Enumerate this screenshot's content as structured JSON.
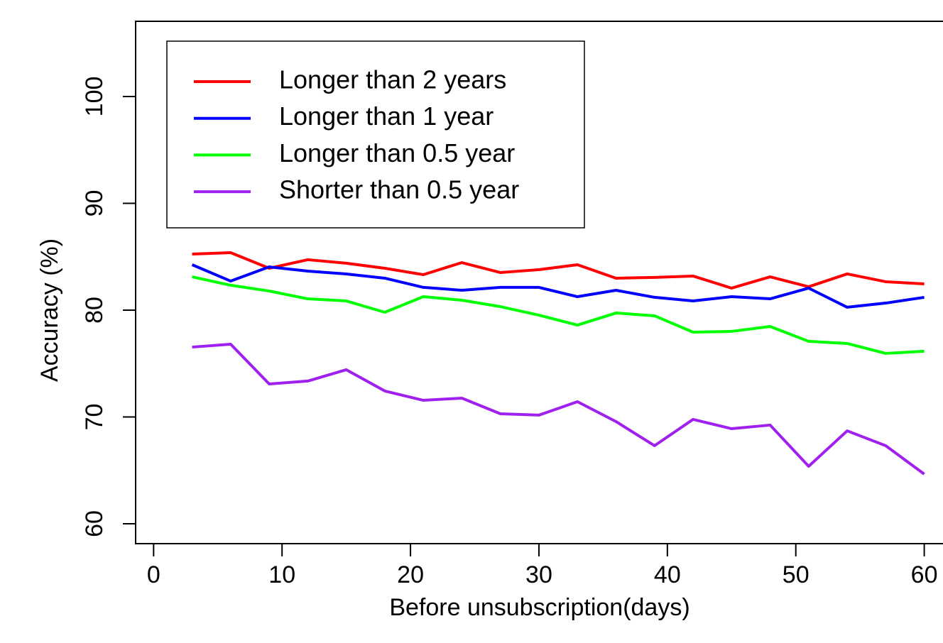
{
  "chart_data": {
    "type": "line",
    "x_label": "Before unsubscription(days)",
    "y_label": "Accuracy (%)",
    "x": [
      3,
      6,
      9,
      12,
      15,
      18,
      21,
      24,
      27,
      30,
      33,
      36,
      39,
      42,
      45,
      48,
      51,
      54,
      57,
      60
    ],
    "series": [
      {
        "name": "Longer than 2 years",
        "color": "#ff0000",
        "values": [
          85.25,
          85.38,
          83.92,
          84.72,
          84.39,
          83.92,
          83.32,
          84.45,
          83.52,
          83.79,
          84.25,
          82.99,
          83.06,
          83.19,
          82.06,
          83.12,
          82.19,
          83.39,
          82.66,
          82.46
        ]
      },
      {
        "name": "Longer than 1 year",
        "color": "#0000ff",
        "values": [
          84.25,
          82.72,
          84.05,
          83.65,
          83.39,
          82.99,
          82.13,
          81.86,
          82.13,
          82.13,
          81.26,
          81.86,
          81.2,
          80.86,
          81.26,
          81.06,
          82.06,
          80.27,
          80.66,
          81.2
        ]
      },
      {
        "name": "Longer than 0.5 year",
        "color": "#00ff00",
        "values": [
          83.12,
          82.33,
          81.79,
          81.06,
          80.86,
          79.8,
          81.26,
          80.93,
          80.33,
          79.53,
          78.6,
          79.73,
          79.47,
          77.94,
          78.01,
          78.47,
          77.08,
          76.88,
          75.95,
          76.15
        ]
      },
      {
        "name": "Shorter than 0.5 year",
        "color": "#a020f0",
        "values": [
          76.54,
          76.81,
          73.09,
          73.36,
          74.42,
          72.43,
          71.56,
          71.76,
          70.3,
          70.17,
          71.43,
          69.57,
          67.31,
          69.77,
          68.9,
          69.24,
          65.38,
          68.7,
          67.31,
          64.65
        ]
      }
    ],
    "xlim": [
      -1.4,
      62.4
    ],
    "xticks": [
      0,
      10,
      20,
      30,
      40,
      50,
      60
    ],
    "ylim": [
      58.14,
      107.04
    ],
    "yticks": [
      60,
      70,
      80,
      90,
      100
    ],
    "legend": "top-left"
  }
}
